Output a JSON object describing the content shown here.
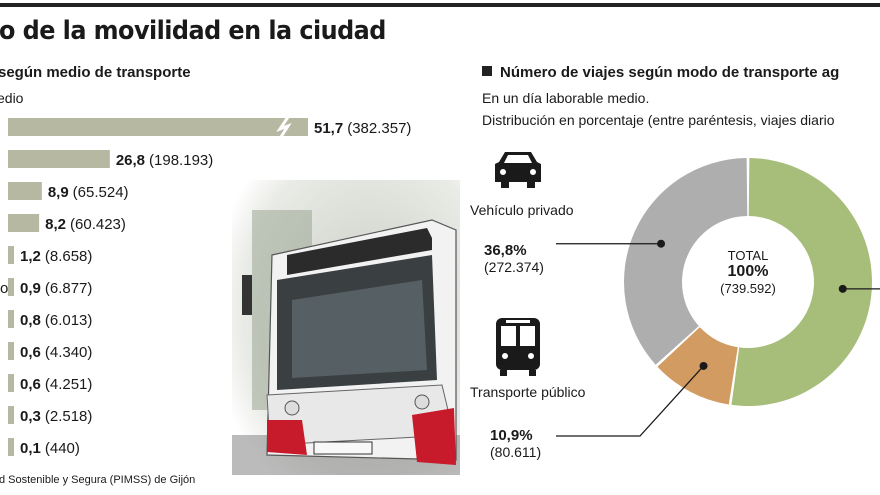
{
  "title": "o de la movilidad en la ciudad",
  "left_panel": {
    "heading": "según medio de transporte",
    "subheading": "edio"
  },
  "right_panel": {
    "heading": "Número de viajes según modo de transporte ag",
    "subheading_1": "En un día laborable medio.",
    "subheading_2": "Distribución en porcentaje (entre paréntesis, viajes diario"
  },
  "source": "d Sostenible y Segura (PIMSS) de Gijón",
  "colors": {
    "bar": "#b7b8a2",
    "private": "#aeaeaf",
    "public": "#d29b62",
    "other": "#a7bd7a"
  },
  "chart_data": [
    {
      "type": "bar",
      "orientation": "horizontal",
      "title": "según medio de transporte",
      "subtitle": "edio",
      "values": [
        51.7,
        26.8,
        8.9,
        8.2,
        1.2,
        0.9,
        0.8,
        0.6,
        0.6,
        0.3,
        0.1
      ],
      "value_labels": [
        "51,7",
        "26,8",
        "8,9",
        "8,2",
        "1,2",
        "0,9",
        "0,8",
        "0,6",
        "0,6",
        "0,3",
        "0,1"
      ],
      "trip_labels": [
        "(382.357)",
        "(198.193)",
        "(65.524)",
        "(60.423)",
        "(8.658)",
        "(6.877)",
        "(6.013)",
        "(4.340)",
        "(4.251)",
        "(2.518)",
        "(440)"
      ],
      "category_label_fragments": [
        "",
        "",
        "",
        "",
        "",
        "o",
        "",
        "",
        "",
        "",
        ""
      ],
      "broken_axis_on_first_bar": true
    },
    {
      "type": "pie",
      "style": "donut",
      "title": "Número de viajes según modo de transporte ag",
      "center_label": "TOTAL",
      "center_value": "100%",
      "center_trips": "(739.592)",
      "slices": [
        {
          "label": "",
          "value": 52.3
        },
        {
          "label": "Transporte público",
          "value": 10.9,
          "pct_label": "10,9%",
          "trips": "(80.611)",
          "icon": "bus-icon"
        },
        {
          "label": "Vehículo privado",
          "value": 36.8,
          "pct_label": "36,8%",
          "trips": "(272.374)",
          "icon": "car-icon"
        }
      ]
    }
  ]
}
